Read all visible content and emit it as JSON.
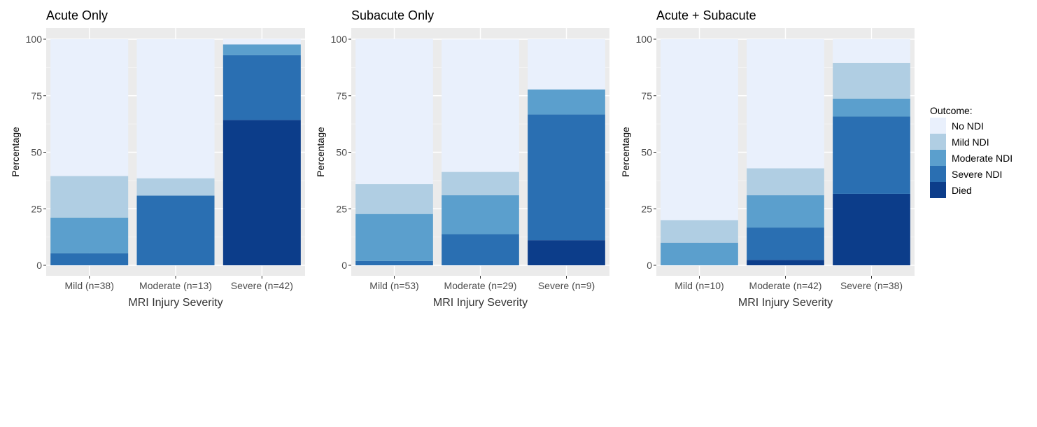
{
  "chart_data": {
    "type": "bar",
    "stacked": true,
    "xlabel": "MRI Injury Severity",
    "ylabel": "Percentage",
    "ylim": [
      0,
      100
    ],
    "yticks": [
      "0",
      "25",
      "50",
      "75",
      "100"
    ],
    "legend": {
      "title": "Outcome:",
      "position": "right",
      "entries": [
        "No NDI",
        "Mild NDI",
        "Moderate NDI",
        "Severe NDI",
        "Died"
      ]
    },
    "series_colors": {
      "Died": "#0c3d8a",
      "Severe NDI": "#2a6fb2",
      "Moderate NDI": "#5b9fcd",
      "Mild NDI": "#b0cee3",
      "No NDI": "#e9f0fc"
    },
    "panels": [
      {
        "title": "Acute Only",
        "categories": [
          "Mild (n=38)",
          "Moderate (n=13)",
          "Severe (n=42)"
        ],
        "series": [
          {
            "name": "Died",
            "values": [
              0,
              0,
              64.3
            ]
          },
          {
            "name": "Severe NDI",
            "values": [
              5.3,
              30.8,
              28.6
            ]
          },
          {
            "name": "Moderate NDI",
            "values": [
              15.8,
              0,
              4.8
            ]
          },
          {
            "name": "Mild NDI",
            "values": [
              18.4,
              7.7,
              0
            ]
          },
          {
            "name": "No NDI",
            "values": [
              60.5,
              61.5,
              2.4
            ]
          }
        ]
      },
      {
        "title": "Subacute Only",
        "categories": [
          "Mild (n=53)",
          "Moderate (n=29)",
          "Severe (n=9)"
        ],
        "series": [
          {
            "name": "Died",
            "values": [
              0,
              0,
              11.1
            ]
          },
          {
            "name": "Severe NDI",
            "values": [
              1.9,
              13.8,
              55.6
            ]
          },
          {
            "name": "Moderate NDI",
            "values": [
              20.8,
              17.2,
              11.1
            ]
          },
          {
            "name": "Mild NDI",
            "values": [
              13.2,
              10.3,
              0
            ]
          },
          {
            "name": "No NDI",
            "values": [
              64.2,
              58.6,
              22.2
            ]
          }
        ]
      },
      {
        "title": "Acute + Subacute",
        "categories": [
          "Mild (n=10)",
          "Moderate (n=42)",
          "Severe (n=38)"
        ],
        "series": [
          {
            "name": "Died",
            "values": [
              0,
              2.4,
              31.6
            ]
          },
          {
            "name": "Severe NDI",
            "values": [
              0,
              14.3,
              34.2
            ]
          },
          {
            "name": "Moderate NDI",
            "values": [
              10,
              14.3,
              7.9
            ]
          },
          {
            "name": "Mild NDI",
            "values": [
              10,
              11.9,
              15.8
            ]
          },
          {
            "name": "No NDI",
            "values": [
              80,
              57.1,
              10.5
            ]
          }
        ]
      }
    ]
  }
}
